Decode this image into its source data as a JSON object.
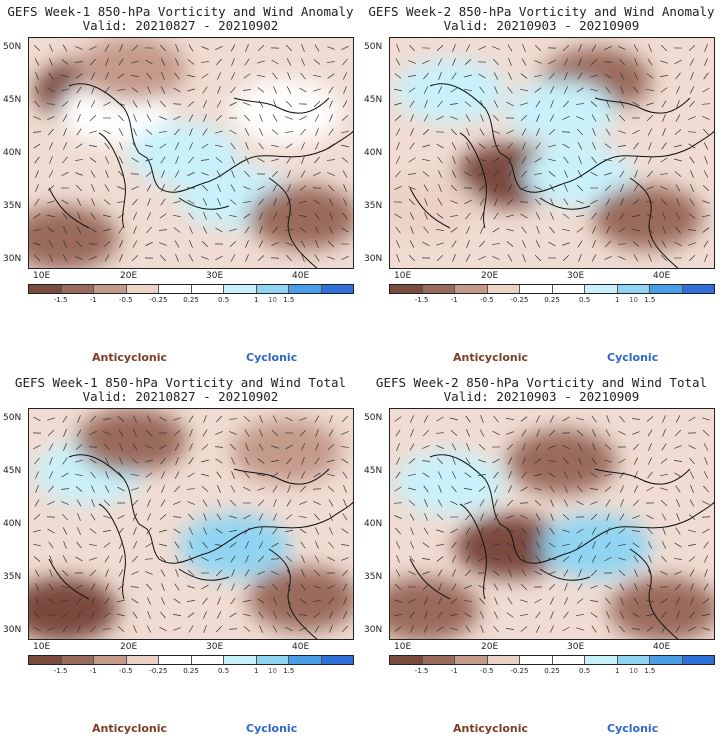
{
  "colors": [
    "#7a4a3c",
    "#9a6a5c",
    "#c49a8a",
    "#ecd2c6",
    "#ffffff",
    "#ffffff",
    "#c9f1fb",
    "#8fd4f2",
    "#4a9ee8",
    "#2e70d8"
  ],
  "colorbar": {
    "ticks": [
      "-1.5",
      "-1",
      "-0.5",
      "-0.25",
      "0.25",
      "0.5",
      "1",
      "1.5"
    ],
    "unit": "10"
  },
  "lat_labels": [
    "50N",
    "45N",
    "40N",
    "35N",
    "30N"
  ],
  "lon_labels": [
    "10E",
    "20E",
    "30E",
    "40E"
  ],
  "legend": {
    "anticyclonic": "Anticyclonic",
    "cyclonic": "Cyclonic"
  },
  "panels": [
    {
      "title": "GEFS Week-1 850-hPa Vorticity and Wind Anomaly",
      "valid": "Valid: 20210827 - 20210902"
    },
    {
      "title": "GEFS Week-2 850-hPa Vorticity and Wind Anomaly",
      "valid": "Valid: 20210903 - 20210909"
    },
    {
      "title": "GEFS Week-1 850-hPa Vorticity and Wind Total",
      "valid": "Valid: 20210827 - 20210902"
    },
    {
      "title": "GEFS Week-2 850-hPa Vorticity and Wind Total",
      "valid": "Valid: 20210903 - 20210909"
    }
  ],
  "chart_data": [
    {
      "type": "heatmap",
      "variable": "850-hPa relative vorticity anomaly",
      "xlim": [
        8,
        46
      ],
      "ylim": [
        29,
        51
      ],
      "colorbar_bounds": [
        -1.5,
        -1,
        -0.5,
        -0.25,
        0.25,
        0.5,
        1,
        1.5
      ],
      "cells": [
        [
          15,
          46,
          -1.5
        ],
        [
          18,
          44,
          0.5
        ],
        [
          32,
          36,
          1
        ],
        [
          40,
          34,
          -1
        ],
        [
          12,
          32,
          -1
        ],
        [
          26,
          40,
          1
        ],
        [
          20,
          48,
          -0.5
        ],
        [
          38,
          44,
          0.25
        ]
      ]
    },
    {
      "type": "heatmap",
      "variable": "850-hPa relative vorticity anomaly",
      "xlim": [
        8,
        46
      ],
      "ylim": [
        29,
        51
      ],
      "colorbar_bounds": [
        -1.5,
        -1,
        -0.5,
        -0.25,
        0.25,
        0.5,
        1,
        1.5
      ],
      "cells": [
        [
          22,
          38,
          -1.5
        ],
        [
          15,
          46,
          1
        ],
        [
          30,
          38,
          1
        ],
        [
          38,
          34,
          -1
        ],
        [
          12,
          35,
          -0.25
        ],
        [
          32,
          47,
          -1
        ],
        [
          28,
          44,
          1
        ]
      ]
    },
    {
      "type": "heatmap",
      "variable": "850-hPa relative vorticity total",
      "xlim": [
        8,
        46
      ],
      "ylim": [
        29,
        51
      ],
      "colorbar_bounds": [
        -1.5,
        -1,
        -0.5,
        -0.25,
        0.25,
        0.5,
        1,
        1.5
      ],
      "cells": [
        [
          12,
          32,
          -1.5
        ],
        [
          32,
          38,
          1.5
        ],
        [
          40,
          33,
          -1
        ],
        [
          15,
          45,
          1
        ],
        [
          20,
          48,
          -1
        ],
        [
          38,
          47,
          -0.5
        ]
      ]
    },
    {
      "type": "heatmap",
      "variable": "850-hPa relative vorticity total",
      "xlim": [
        8,
        46
      ],
      "ylim": [
        29,
        51
      ],
      "colorbar_bounds": [
        -1.5,
        -1,
        -0.5,
        -0.25,
        0.25,
        0.5,
        1,
        1.5
      ],
      "cells": [
        [
          22,
          38,
          -1.5
        ],
        [
          32,
          38,
          1.5
        ],
        [
          40,
          32,
          -1
        ],
        [
          15,
          44,
          1
        ],
        [
          12,
          32,
          -1
        ],
        [
          28,
          46,
          -1
        ]
      ]
    }
  ]
}
